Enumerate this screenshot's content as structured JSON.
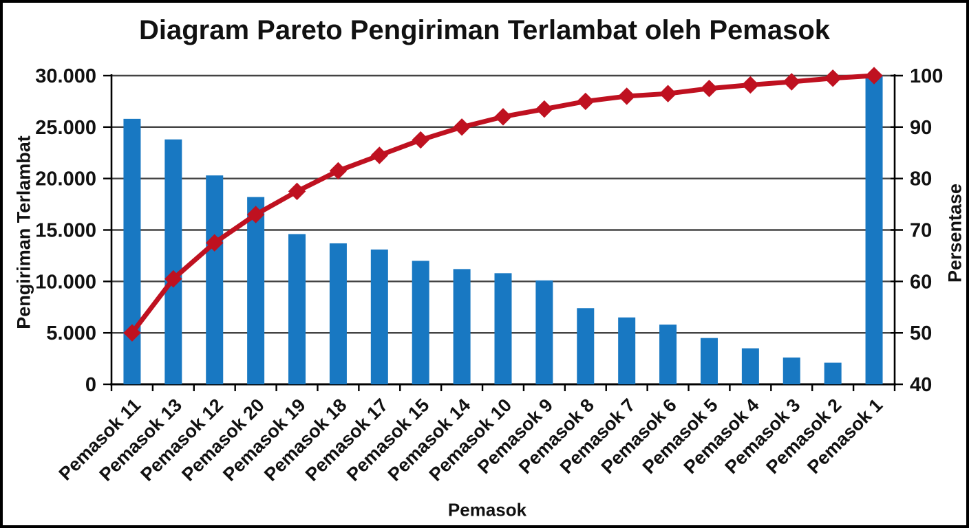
{
  "chart_data": {
    "type": "pareto (bar + cumulative line)",
    "title": "Diagram Pareto Pengiriman Terlambat oleh Pemasok",
    "x_label": "Pemasok",
    "categories": [
      "Pemasok 11",
      "Pemasok 13",
      "Pemasok 12",
      "Pemasok 20",
      "Pemasok 19",
      "Pemasok 18",
      "Pemasok 17",
      "Pemasok 15",
      "Pemasok 14",
      "Pemasok 10",
      "Pemasok 9",
      "Pemasok 8",
      "Pemasok 7",
      "Pemasok 6",
      "Pemasok 5",
      "Pemasok 4",
      "Pemasok 3",
      "Pemasok 2",
      "Pemasok 1"
    ],
    "series": [
      {
        "name": "Pengiriman Terlambat",
        "type": "bar",
        "axis": "left",
        "color": "#1878c2",
        "values": [
          25800,
          23800,
          20300,
          18200,
          14600,
          13700,
          13100,
          12000,
          11200,
          10800,
          10100,
          7400,
          6500,
          5800,
          4500,
          3500,
          2600,
          2100,
          30000
        ]
      },
      {
        "name": "Persentase",
        "type": "line",
        "axis": "right",
        "color": "#bf1120",
        "marker": "diamond",
        "values": [
          50,
          60.5,
          67.5,
          73,
          77.5,
          81.5,
          84.5,
          87.5,
          90,
          92,
          93.5,
          95,
          96,
          96.5,
          97.5,
          98.2,
          98.8,
          99.5,
          100
        ]
      }
    ],
    "y_left": {
      "label": "Pengiriman Terlambat",
      "min": 0,
      "max": 30000,
      "tick_values": [
        0,
        5000,
        10000,
        15000,
        20000,
        25000,
        30000
      ],
      "tick_labels": [
        "0",
        "5.000",
        "10.000",
        "15.000",
        "20.000",
        "25.000",
        "30.000"
      ]
    },
    "y_right": {
      "label": "Persentase",
      "min": 40,
      "max": 100,
      "tick_values": [
        40,
        50,
        60,
        70,
        80,
        90,
        100
      ],
      "tick_labels": [
        "40",
        "50",
        "60",
        "70",
        "80",
        "90",
        "100"
      ]
    },
    "grid": true,
    "legend": "none",
    "colors": {
      "grid": "#434343",
      "axis": "#000000",
      "background": "#ffffff",
      "frame": "#000000"
    }
  }
}
